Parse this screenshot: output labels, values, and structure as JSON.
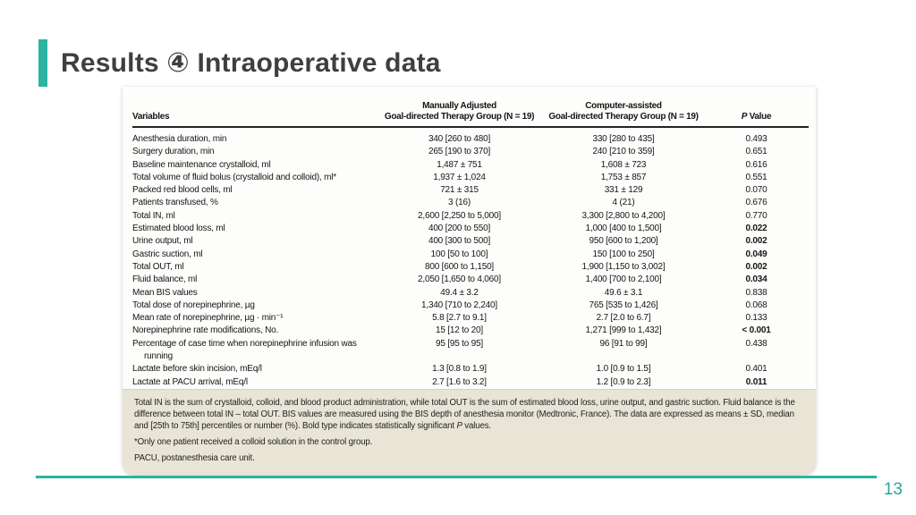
{
  "slide": {
    "title": "Results ④ Intraoperative data",
    "page_number": "13",
    "accent_color": "#2cb3a2"
  },
  "table": {
    "headers": {
      "variables": "Variables",
      "group1_line1": "Manually Adjusted",
      "group1_line2": "Goal-directed Therapy Group (N = 19)",
      "group2_line1": "Computer-assisted",
      "group2_line2": "Goal-directed Therapy Group (N = 19)",
      "p_italic": "P",
      "p_rest": " Value"
    },
    "rows": [
      {
        "variable": "Anesthesia duration, min",
        "manual": "340 [260 to 480]",
        "computer": "330 [280 to 435]",
        "p": "0.493",
        "bold": false
      },
      {
        "variable": "Surgery duration, min",
        "manual": "265 [190 to 370]",
        "computer": "240 [210 to 359]",
        "p": "0.651",
        "bold": false
      },
      {
        "variable": "Baseline maintenance crystalloid, ml",
        "manual": "1,487 ± 751",
        "computer": "1,608 ± 723",
        "p": "0.616",
        "bold": false
      },
      {
        "variable": "Total volume of fluid bolus (crystalloid and colloid), ml*",
        "manual": "1,937 ± 1,024",
        "computer": "1,753 ± 857",
        "p": "0.551",
        "bold": false
      },
      {
        "variable": "Packed red blood cells, ml",
        "manual": "721 ± 315",
        "computer": "331 ± 129",
        "p": "0.070",
        "bold": false
      },
      {
        "variable": "Patients transfused, %",
        "manual": "3 (16)",
        "computer": "4 (21)",
        "p": "0.676",
        "bold": false
      },
      {
        "variable": "Total IN, ml",
        "manual": "2,600 [2,250 to 5,000]",
        "computer": "3,300 [2,800 to 4,200]",
        "p": "0.770",
        "bold": false
      },
      {
        "variable": "Estimated blood loss, ml",
        "manual": "400 [200 to 550]",
        "computer": "1,000 [400 to 1,500]",
        "p": "0.022",
        "bold": true
      },
      {
        "variable": "Urine output, ml",
        "manual": "400 [300 to 500]",
        "computer": "950 [600 to 1,200]",
        "p": "0.002",
        "bold": true
      },
      {
        "variable": "Gastric suction, ml",
        "manual": "100 [50 to 100]",
        "computer": "150 [100 to 250]",
        "p": "0.049",
        "bold": true
      },
      {
        "variable": "Total OUT, ml",
        "manual": "800 [600 to 1,150]",
        "computer": "1,900 [1,150 to 3,002]",
        "p": "0.002",
        "bold": true
      },
      {
        "variable": "Fluid balance, ml",
        "manual": "2,050 [1,650 to 4,060]",
        "computer": "1,400 [700 to 2,100]",
        "p": "0.034",
        "bold": true
      },
      {
        "variable": "Mean BIS values",
        "manual": "49.4 ± 3.2",
        "computer": "49.6 ± 3.1",
        "p": "0.838",
        "bold": false
      },
      {
        "variable": "Total dose of norepinephrine, µg",
        "manual": "1,340 [710 to 2,240]",
        "computer": "765 [535 to 1,426]",
        "p": "0.068",
        "bold": false
      },
      {
        "variable": "Mean rate of norepinephrine, µg · min⁻¹",
        "manual": "5.8 [2.7 to 9.1]",
        "computer": "2.7 [2.0 to 6.7]",
        "p": "0.133",
        "bold": false
      },
      {
        "variable": "Norepinephrine rate modifications, No.",
        "manual": "15 [12 to 20]",
        "computer": "1,271 [999 to 1,432]",
        "p": "< 0.001",
        "bold": true
      },
      {
        "variable": "Percentage of case time when norepinephrine infusion was running",
        "manual": "95 [95 to 95]",
        "computer": "96 [91 to 99]",
        "p": "0.438",
        "bold": false
      },
      {
        "variable": "Lactate before skin incision, mEq/l",
        "manual": "1.3 [0.8 to 1.9]",
        "computer": "1.0 [0.9 to 1.5]",
        "p": "0.401",
        "bold": false
      },
      {
        "variable": "Lactate at PACU arrival, mEq/l",
        "manual": "2.7 [1.6 to 3.2]",
        "computer": "1.2 [0.9 to 2.3]",
        "p": "0.011",
        "bold": true
      }
    ]
  },
  "footnotes": {
    "line1_before_p": "Total IN is the sum of crystalloid, colloid, and blood product administration, while total OUT is the sum of estimated blood loss, urine output, and gastric suction. Fluid balance is the difference between total IN – total OUT. BIS values are measured using the BIS depth of anesthesia monitor (Medtronic, France). The data are expressed as means ± SD, median and [25th to 75th] percentiles or number (%). Bold type indicates statistically significant ",
    "p_italic": "P",
    "line1_after_p": " values.",
    "line2": "*Only one patient received a colloid solution in the control group.",
    "line3": "PACU, postanesthesia care unit."
  }
}
